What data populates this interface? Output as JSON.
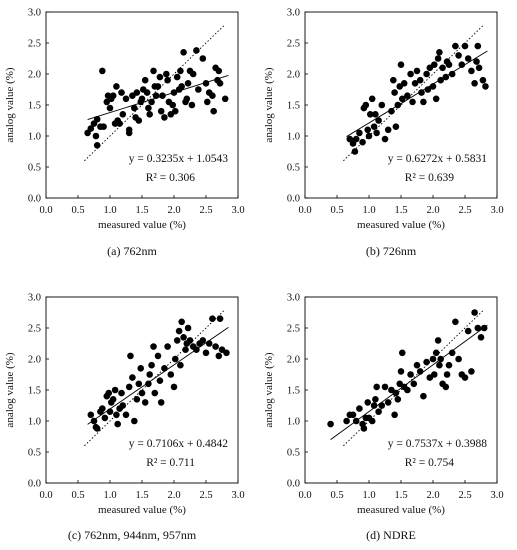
{
  "chart_data": [
    {
      "type": "scatter",
      "caption": "(a) 762nm",
      "xlabel": "measured value (%)",
      "ylabel": "analog value (%)",
      "xlim": [
        0.0,
        3.0
      ],
      "ylim": [
        0.0,
        3.0
      ],
      "xticks": [
        "0.0",
        "0.5",
        "1.0",
        "1.5",
        "2.0",
        "2.5",
        "3.0"
      ],
      "yticks": [
        "0.0",
        "0.5",
        "1.0",
        "1.5",
        "2.0",
        "2.5",
        "3.0"
      ],
      "equation": "y = 0.3235x + 1.0543",
      "r2": "R² = 0.306",
      "fit": {
        "slope": 0.3235,
        "intercept": 1.0543,
        "x_range": [
          0.65,
          2.85
        ]
      },
      "show_one_to_one": true,
      "points": [
        [
          0.65,
          1.05
        ],
        [
          0.7,
          1.12
        ],
        [
          0.75,
          1.2
        ],
        [
          0.78,
          1.0
        ],
        [
          0.8,
          0.85
        ],
        [
          0.8,
          1.27
        ],
        [
          0.85,
          1.15
        ],
        [
          0.88,
          2.05
        ],
        [
          0.9,
          1.15
        ],
        [
          0.95,
          1.55
        ],
        [
          0.97,
          1.65
        ],
        [
          1.0,
          1.45
        ],
        [
          1.02,
          1.6
        ],
        [
          1.05,
          1.65
        ],
        [
          1.08,
          1.2
        ],
        [
          1.1,
          1.8
        ],
        [
          1.12,
          1.25
        ],
        [
          1.15,
          1.2
        ],
        [
          1.18,
          1.7
        ],
        [
          1.2,
          1.35
        ],
        [
          1.25,
          1.6
        ],
        [
          1.3,
          1.1
        ],
        [
          1.3,
          1.05
        ],
        [
          1.35,
          1.65
        ],
        [
          1.38,
          1.45
        ],
        [
          1.4,
          1.3
        ],
        [
          1.42,
          1.7
        ],
        [
          1.45,
          1.25
        ],
        [
          1.48,
          1.55
        ],
        [
          1.5,
          1.6
        ],
        [
          1.52,
          1.75
        ],
        [
          1.55,
          1.9
        ],
        [
          1.58,
          1.7
        ],
        [
          1.6,
          1.45
        ],
        [
          1.62,
          1.35
        ],
        [
          1.65,
          1.55
        ],
        [
          1.68,
          2.05
        ],
        [
          1.7,
          1.8
        ],
        [
          1.72,
          1.65
        ],
        [
          1.75,
          1.8
        ],
        [
          1.78,
          1.95
        ],
        [
          1.8,
          1.4
        ],
        [
          1.82,
          1.65
        ],
        [
          1.85,
          1.3
        ],
        [
          1.88,
          2.0
        ],
        [
          1.9,
          1.9
        ],
        [
          1.92,
          1.55
        ],
        [
          1.95,
          1.35
        ],
        [
          1.98,
          1.5
        ],
        [
          2.0,
          1.7
        ],
        [
          2.02,
          1.4
        ],
        [
          2.05,
          1.95
        ],
        [
          2.08,
          1.75
        ],
        [
          2.1,
          2.05
        ],
        [
          2.12,
          1.8
        ],
        [
          2.15,
          2.35
        ],
        [
          2.18,
          1.55
        ],
        [
          2.2,
          1.6
        ],
        [
          2.22,
          1.85
        ],
        [
          2.25,
          2.05
        ],
        [
          2.28,
          1.5
        ],
        [
          2.3,
          2.0
        ],
        [
          2.35,
          2.38
        ],
        [
          2.38,
          1.75
        ],
        [
          2.45,
          2.25
        ],
        [
          2.5,
          1.85
        ],
        [
          2.52,
          1.55
        ],
        [
          2.55,
          1.7
        ],
        [
          2.6,
          1.65
        ],
        [
          2.62,
          1.4
        ],
        [
          2.65,
          2.1
        ],
        [
          2.68,
          1.9
        ],
        [
          2.7,
          2.05
        ],
        [
          2.72,
          1.85
        ],
        [
          2.8,
          1.6
        ]
      ]
    },
    {
      "type": "scatter",
      "caption": "(b) 726nm",
      "xlabel": "measured value (%)",
      "ylabel": "analog value (%)",
      "xlim": [
        0.0,
        3.0
      ],
      "ylim": [
        0.0,
        3.0
      ],
      "xticks": [
        "0.0",
        "0.5",
        "1.0",
        "1.5",
        "2.0",
        "2.5",
        "3.0"
      ],
      "yticks": [
        "0.0",
        "0.5",
        "1.0",
        "1.5",
        "2.0",
        "2.5",
        "3.0"
      ],
      "equation": "y = 0.6272x + 0.5831",
      "r2": "R² = 0.639",
      "fit": {
        "slope": 0.6272,
        "intercept": 0.5831,
        "x_range": [
          0.65,
          2.85
        ]
      },
      "show_one_to_one": true,
      "points": [
        [
          0.7,
          0.95
        ],
        [
          0.75,
          0.88
        ],
        [
          0.78,
          0.75
        ],
        [
          0.8,
          0.95
        ],
        [
          0.85,
          1.05
        ],
        [
          0.9,
          0.9
        ],
        [
          0.92,
          1.45
        ],
        [
          0.95,
          1.5
        ],
        [
          0.98,
          1.1
        ],
        [
          1.0,
          1.0
        ],
        [
          1.02,
          1.35
        ],
        [
          1.05,
          1.6
        ],
        [
          1.08,
          1.15
        ],
        [
          1.1,
          1.35
        ],
        [
          1.12,
          1.05
        ],
        [
          1.15,
          1.25
        ],
        [
          1.2,
          1.5
        ],
        [
          1.25,
          0.95
        ],
        [
          1.3,
          1.1
        ],
        [
          1.35,
          1.4
        ],
        [
          1.38,
          1.9
        ],
        [
          1.4,
          1.7
        ],
        [
          1.42,
          1.15
        ],
        [
          1.45,
          1.5
        ],
        [
          1.48,
          1.8
        ],
        [
          1.5,
          2.15
        ],
        [
          1.52,
          1.6
        ],
        [
          1.55,
          1.85
        ],
        [
          1.6,
          1.65
        ],
        [
          1.65,
          2.0
        ],
        [
          1.68,
          1.55
        ],
        [
          1.72,
          1.85
        ],
        [
          1.75,
          2.05
        ],
        [
          1.8,
          1.9
        ],
        [
          1.82,
          1.7
        ],
        [
          1.85,
          1.55
        ],
        [
          1.9,
          2.0
        ],
        [
          1.92,
          1.75
        ],
        [
          1.95,
          2.1
        ],
        [
          2.0,
          1.8
        ],
        [
          2.02,
          2.15
        ],
        [
          2.05,
          1.6
        ],
        [
          2.08,
          2.25
        ],
        [
          2.1,
          2.35
        ],
        [
          2.12,
          1.9
        ],
        [
          2.15,
          2.1
        ],
        [
          2.2,
          1.95
        ],
        [
          2.22,
          2.2
        ],
        [
          2.25,
          2.15
        ],
        [
          2.3,
          2.0
        ],
        [
          2.35,
          2.45
        ],
        [
          2.4,
          2.3
        ],
        [
          2.45,
          2.15
        ],
        [
          2.5,
          2.45
        ],
        [
          2.55,
          2.25
        ],
        [
          2.6,
          2.05
        ],
        [
          2.65,
          1.85
        ],
        [
          2.68,
          2.2
        ],
        [
          2.7,
          2.45
        ],
        [
          2.72,
          2.1
        ],
        [
          2.78,
          1.9
        ],
        [
          2.82,
          1.8
        ]
      ]
    },
    {
      "type": "scatter",
      "caption": "(c) 762nm, 944nm, 957nm",
      "xlabel": "measured value (%)",
      "ylabel": "analog value (%)",
      "xlim": [
        0.0,
        3.0
      ],
      "ylim": [
        0.0,
        3.0
      ],
      "xticks": [
        "0.0",
        "0.5",
        "1.0",
        "1.5",
        "2.0",
        "2.5",
        "3.0"
      ],
      "yticks": [
        "0.0",
        "0.5",
        "1.0",
        "1.5",
        "2.0",
        "2.5",
        "3.0"
      ],
      "equation": "y = 0.7106x + 0.4842",
      "r2": "R² = 0.711",
      "fit": {
        "slope": 0.7106,
        "intercept": 0.4842,
        "x_range": [
          0.65,
          2.85
        ]
      },
      "show_one_to_one": true,
      "points": [
        [
          0.7,
          1.1
        ],
        [
          0.75,
          1.0
        ],
        [
          0.78,
          0.9
        ],
        [
          0.8,
          0.88
        ],
        [
          0.85,
          1.15
        ],
        [
          0.88,
          1.2
        ],
        [
          0.92,
          1.05
        ],
        [
          0.95,
          1.4
        ],
        [
          0.98,
          1.45
        ],
        [
          1.0,
          1.15
        ],
        [
          1.02,
          1.3
        ],
        [
          1.05,
          1.35
        ],
        [
          1.08,
          1.5
        ],
        [
          1.1,
          1.1
        ],
        [
          1.12,
          0.95
        ],
        [
          1.15,
          1.2
        ],
        [
          1.18,
          1.45
        ],
        [
          1.2,
          1.25
        ],
        [
          1.25,
          1.1
        ],
        [
          1.3,
          1.55
        ],
        [
          1.32,
          2.05
        ],
        [
          1.35,
          1.7
        ],
        [
          1.38,
          1.0
        ],
        [
          1.42,
          1.35
        ],
        [
          1.45,
          1.6
        ],
        [
          1.48,
          1.85
        ],
        [
          1.5,
          1.45
        ],
        [
          1.55,
          1.3
        ],
        [
          1.6,
          1.6
        ],
        [
          1.62,
          1.75
        ],
        [
          1.65,
          1.9
        ],
        [
          1.68,
          2.2
        ],
        [
          1.7,
          1.45
        ],
        [
          1.75,
          2.05
        ],
        [
          1.78,
          1.65
        ],
        [
          1.8,
          1.3
        ],
        [
          1.85,
          1.85
        ],
        [
          1.9,
          2.2
        ],
        [
          1.95,
          1.75
        ],
        [
          2.0,
          1.55
        ],
        [
          2.02,
          2.0
        ],
        [
          2.05,
          2.3
        ],
        [
          2.08,
          2.45
        ],
        [
          2.1,
          1.9
        ],
        [
          2.12,
          2.6
        ],
        [
          2.15,
          2.35
        ],
        [
          2.18,
          2.15
        ],
        [
          2.2,
          2.25
        ],
        [
          2.22,
          2.5
        ],
        [
          2.25,
          2.3
        ],
        [
          2.3,
          2.2
        ],
        [
          2.35,
          2.15
        ],
        [
          2.4,
          2.25
        ],
        [
          2.45,
          2.3
        ],
        [
          2.5,
          2.1
        ],
        [
          2.55,
          2.25
        ],
        [
          2.6,
          2.65
        ],
        [
          2.65,
          2.2
        ],
        [
          2.7,
          2.05
        ],
        [
          2.72,
          2.65
        ],
        [
          2.75,
          2.15
        ],
        [
          2.82,
          2.1
        ]
      ]
    },
    {
      "type": "scatter",
      "caption": "(d) NDRE",
      "xlabel": "measured value (%)",
      "ylabel": "analog value (%)",
      "xlim": [
        0.0,
        3.0
      ],
      "ylim": [
        0.0,
        3.0
      ],
      "xticks": [
        "0.0",
        "0.5",
        "1.0",
        "1.5",
        "2.0",
        "2.5",
        "3.0"
      ],
      "yticks": [
        "0.0",
        "0.5",
        "1.0",
        "1.5",
        "2.0",
        "2.5",
        "3.0"
      ],
      "equation": "y = 0.7537x + 0.3988",
      "r2": "R² = 0.754",
      "fit": {
        "slope": 0.7537,
        "intercept": 0.3988,
        "x_range": [
          0.4,
          2.85
        ]
      },
      "show_one_to_one": true,
      "points": [
        [
          0.4,
          0.95
        ],
        [
          0.65,
          1.0
        ],
        [
          0.7,
          1.1
        ],
        [
          0.75,
          1.1
        ],
        [
          0.8,
          1.0
        ],
        [
          0.85,
          1.2
        ],
        [
          0.9,
          0.95
        ],
        [
          0.92,
          0.88
        ],
        [
          0.95,
          1.05
        ],
        [
          0.98,
          1.3
        ],
        [
          1.0,
          1.05
        ],
        [
          1.05,
          1.0
        ],
        [
          1.08,
          1.25
        ],
        [
          1.1,
          1.35
        ],
        [
          1.12,
          1.55
        ],
        [
          1.15,
          1.15
        ],
        [
          1.2,
          1.25
        ],
        [
          1.25,
          1.55
        ],
        [
          1.3,
          1.3
        ],
        [
          1.35,
          1.5
        ],
        [
          1.4,
          1.1
        ],
        [
          1.42,
          1.45
        ],
        [
          1.45,
          1.35
        ],
        [
          1.48,
          1.6
        ],
        [
          1.5,
          1.8
        ],
        [
          1.52,
          2.1
        ],
        [
          1.55,
          1.55
        ],
        [
          1.6,
          1.5
        ],
        [
          1.65,
          1.75
        ],
        [
          1.7,
          1.6
        ],
        [
          1.75,
          1.9
        ],
        [
          1.8,
          1.8
        ],
        [
          1.85,
          1.4
        ],
        [
          1.9,
          1.95
        ],
        [
          1.95,
          1.7
        ],
        [
          2.0,
          2.0
        ],
        [
          2.02,
          1.75
        ],
        [
          2.05,
          2.1
        ],
        [
          2.08,
          2.3
        ],
        [
          2.1,
          1.9
        ],
        [
          2.12,
          2.0
        ],
        [
          2.15,
          1.6
        ],
        [
          2.2,
          1.55
        ],
        [
          2.22,
          1.75
        ],
        [
          2.25,
          1.9
        ],
        [
          2.3,
          2.1
        ],
        [
          2.35,
          2.6
        ],
        [
          2.4,
          2.0
        ],
        [
          2.45,
          1.75
        ],
        [
          2.5,
          1.7
        ],
        [
          2.55,
          2.45
        ],
        [
          2.6,
          1.8
        ],
        [
          2.65,
          2.75
        ],
        [
          2.7,
          2.5
        ],
        [
          2.75,
          2.35
        ],
        [
          2.8,
          2.5
        ]
      ]
    }
  ]
}
